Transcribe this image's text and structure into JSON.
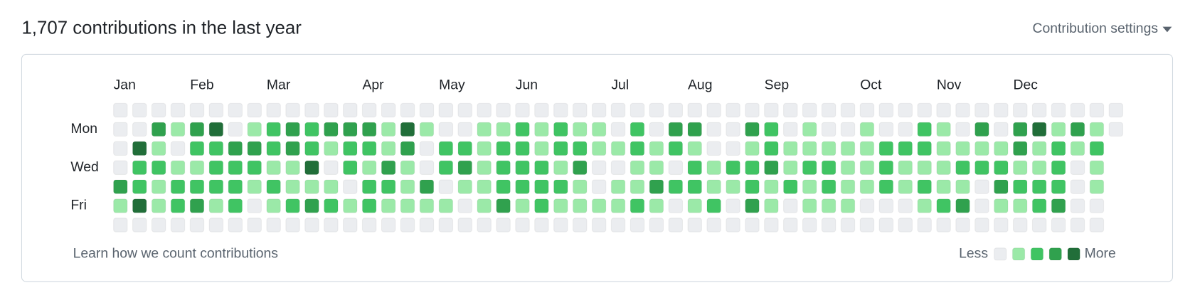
{
  "header": {
    "title": "1,707 contributions in the last year",
    "settings": "Contribution settings"
  },
  "calendar": {
    "day_labels": [
      null,
      "Mon",
      null,
      "Wed",
      null,
      "Fri",
      null
    ],
    "level_colors": [
      "#ebedf0",
      "#9be9a8",
      "#40c463",
      "#30a14e",
      "#216e39"
    ],
    "weeks": [
      {
        "month": "Jan",
        "days": [
          0,
          0,
          0,
          0,
          3,
          1,
          0
        ]
      },
      {
        "days": [
          0,
          0,
          4,
          2,
          2,
          4,
          0
        ]
      },
      {
        "days": [
          0,
          3,
          1,
          2,
          1,
          1,
          0
        ]
      },
      {
        "days": [
          0,
          1,
          0,
          1,
          2,
          2,
          0
        ]
      },
      {
        "month": "Feb",
        "days": [
          0,
          3,
          2,
          1,
          2,
          3,
          0
        ]
      },
      {
        "days": [
          0,
          4,
          2,
          2,
          2,
          1,
          0
        ]
      },
      {
        "days": [
          0,
          0,
          3,
          2,
          2,
          2,
          0
        ]
      },
      {
        "days": [
          0,
          1,
          3,
          2,
          1,
          0,
          0
        ]
      },
      {
        "month": "Mar",
        "days": [
          0,
          2,
          2,
          1,
          2,
          1,
          0
        ]
      },
      {
        "days": [
          0,
          3,
          3,
          1,
          1,
          2,
          0
        ]
      },
      {
        "days": [
          0,
          2,
          2,
          4,
          1,
          3,
          0
        ]
      },
      {
        "days": [
          0,
          3,
          1,
          0,
          1,
          2,
          0
        ]
      },
      {
        "days": [
          0,
          3,
          2,
          2,
          0,
          1,
          0
        ]
      },
      {
        "month": "Apr",
        "days": [
          0,
          3,
          2,
          1,
          2,
          2,
          0
        ]
      },
      {
        "days": [
          0,
          1,
          1,
          3,
          2,
          1,
          0
        ]
      },
      {
        "days": [
          0,
          4,
          3,
          1,
          1,
          1,
          0
        ]
      },
      {
        "days": [
          0,
          1,
          0,
          0,
          3,
          1,
          0
        ]
      },
      {
        "month": "May",
        "days": [
          0,
          0,
          2,
          2,
          0,
          1,
          0
        ]
      },
      {
        "days": [
          0,
          0,
          2,
          3,
          1,
          0,
          0
        ]
      },
      {
        "days": [
          0,
          1,
          1,
          1,
          1,
          1,
          0
        ]
      },
      {
        "days": [
          0,
          1,
          2,
          2,
          2,
          3,
          0
        ]
      },
      {
        "month": "Jun",
        "days": [
          0,
          2,
          2,
          2,
          2,
          1,
          0
        ]
      },
      {
        "days": [
          0,
          1,
          1,
          2,
          2,
          2,
          0
        ]
      },
      {
        "days": [
          0,
          2,
          2,
          1,
          2,
          1,
          0
        ]
      },
      {
        "days": [
          0,
          1,
          2,
          3,
          1,
          1,
          0
        ]
      },
      {
        "days": [
          0,
          1,
          1,
          0,
          0,
          1,
          0
        ]
      },
      {
        "month": "Jul",
        "days": [
          0,
          0,
          1,
          0,
          1,
          1,
          0
        ]
      },
      {
        "days": [
          0,
          2,
          2,
          1,
          1,
          2,
          0
        ]
      },
      {
        "days": [
          0,
          0,
          1,
          1,
          3,
          1,
          0
        ]
      },
      {
        "days": [
          0,
          3,
          2,
          0,
          2,
          0,
          0
        ]
      },
      {
        "month": "Aug",
        "days": [
          0,
          3,
          1,
          2,
          2,
          1,
          0
        ]
      },
      {
        "days": [
          0,
          0,
          0,
          1,
          1,
          2,
          0
        ]
      },
      {
        "days": [
          0,
          0,
          0,
          2,
          1,
          0,
          0
        ]
      },
      {
        "days": [
          0,
          3,
          1,
          2,
          2,
          3,
          0
        ]
      },
      {
        "month": "Sep",
        "days": [
          0,
          2,
          2,
          3,
          1,
          1,
          0
        ]
      },
      {
        "days": [
          0,
          0,
          1,
          1,
          2,
          0,
          0
        ]
      },
      {
        "days": [
          0,
          1,
          1,
          2,
          1,
          1,
          0
        ]
      },
      {
        "days": [
          0,
          0,
          1,
          2,
          2,
          1,
          0
        ]
      },
      {
        "days": [
          0,
          0,
          1,
          1,
          1,
          1,
          0
        ]
      },
      {
        "month": "Oct",
        "days": [
          0,
          1,
          1,
          1,
          1,
          0,
          0
        ]
      },
      {
        "days": [
          0,
          0,
          2,
          2,
          2,
          0,
          0
        ]
      },
      {
        "days": [
          0,
          0,
          2,
          1,
          1,
          0,
          0
        ]
      },
      {
        "days": [
          0,
          2,
          2,
          1,
          2,
          1,
          0
        ]
      },
      {
        "month": "Nov",
        "days": [
          0,
          1,
          1,
          1,
          1,
          2,
          0
        ]
      },
      {
        "days": [
          0,
          0,
          1,
          2,
          1,
          3,
          0
        ]
      },
      {
        "days": [
          0,
          3,
          1,
          2,
          0,
          0,
          0
        ]
      },
      {
        "days": [
          0,
          0,
          1,
          2,
          3,
          1,
          0
        ]
      },
      {
        "month": "Dec",
        "days": [
          0,
          3,
          3,
          1,
          2,
          1,
          0
        ]
      },
      {
        "days": [
          0,
          4,
          1,
          1,
          2,
          2,
          0
        ]
      },
      {
        "days": [
          0,
          1,
          2,
          2,
          2,
          3,
          0
        ]
      },
      {
        "days": [
          0,
          3,
          1,
          0,
          0,
          0,
          0
        ]
      },
      {
        "days": [
          0,
          1,
          2,
          1,
          1,
          0,
          0
        ]
      },
      {
        "days": [
          0,
          0
        ]
      }
    ]
  },
  "footer": {
    "learn": "Learn how we count contributions",
    "less": "Less",
    "more": "More",
    "legend_levels": [
      0,
      1,
      2,
      3,
      4
    ]
  }
}
